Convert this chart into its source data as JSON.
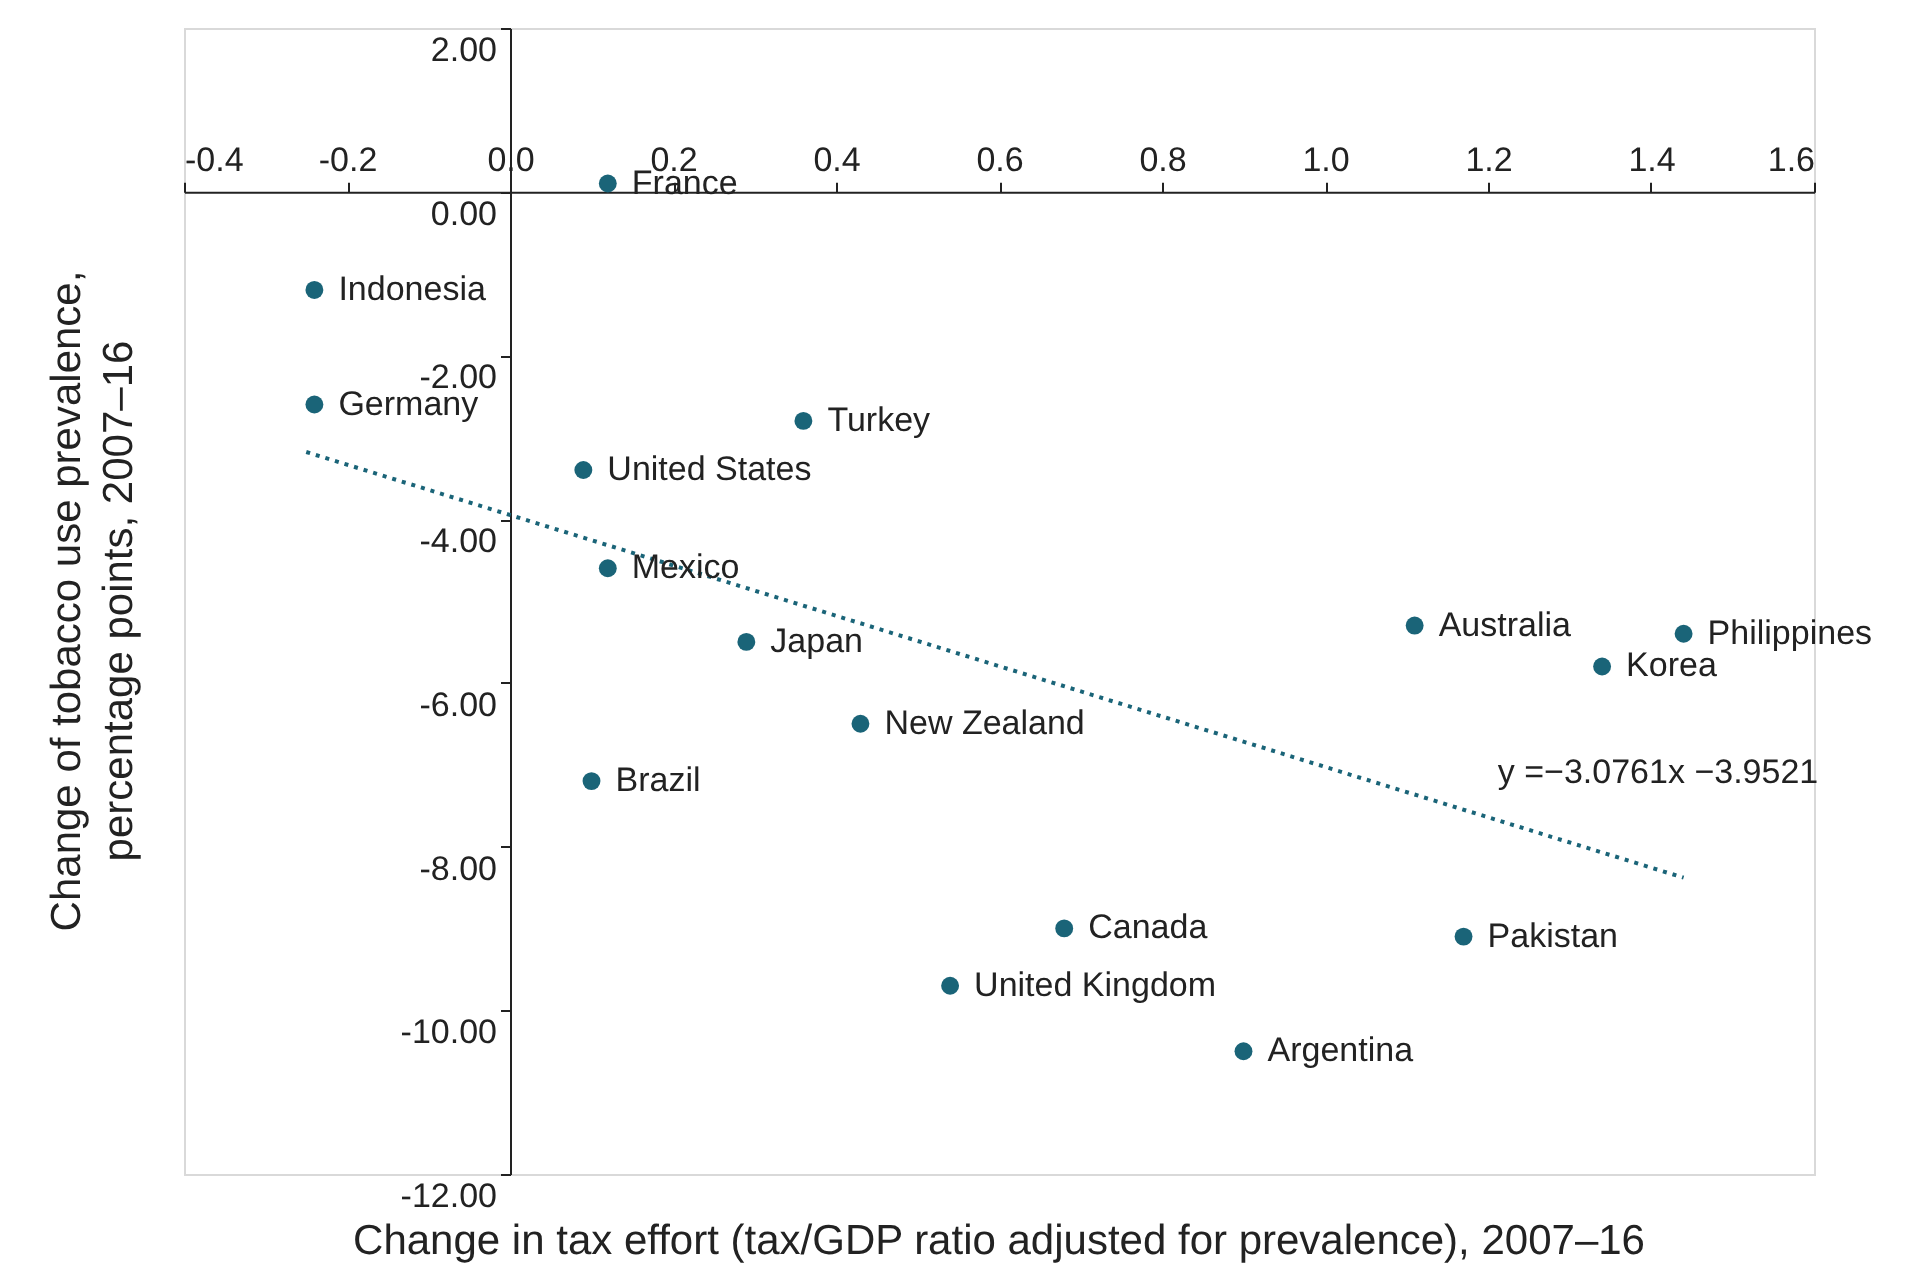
{
  "chart_data": {
    "type": "scatter",
    "xlabel": "Change in tax effort (tax/GDP ratio adjusted for prevalence), 2007–16",
    "ylabel": "Change of tobacco use prevalence,\npercentage points, 2007–16",
    "xlim": [
      -0.4,
      1.6
    ],
    "ylim": [
      -12,
      2
    ],
    "xticks": [
      {
        "value": -0.4,
        "label": "-0.4"
      },
      {
        "value": -0.2,
        "label": "-0.2"
      },
      {
        "value": 0,
        "label": "0.0"
      },
      {
        "value": 0.2,
        "label": "0.2"
      },
      {
        "value": 0.4,
        "label": "0.4"
      },
      {
        "value": 0.6,
        "label": "0.6"
      },
      {
        "value": 0.8,
        "label": "0.8"
      },
      {
        "value": 1.0,
        "label": "1.0"
      },
      {
        "value": 1.2,
        "label": "1.2"
      },
      {
        "value": 1.4,
        "label": "1.4"
      },
      {
        "value": 1.6,
        "label": "1.6"
      }
    ],
    "yticks": [
      {
        "value": 2,
        "label": "2.00"
      },
      {
        "value": 0,
        "label": "0.00"
      },
      {
        "value": -2,
        "label": "-2.00"
      },
      {
        "value": -4,
        "label": "-4.00"
      },
      {
        "value": -6,
        "label": "-6.00"
      },
      {
        "value": -8,
        "label": "-8.00"
      },
      {
        "value": -10,
        "label": "-10.00"
      },
      {
        "value": -12,
        "label": "-12.00"
      }
    ],
    "grid": false,
    "series": [
      {
        "type": "scatter",
        "marker": "circle",
        "color": "#1a6478",
        "x": [
          0.12,
          -0.24,
          -0.24,
          0.36,
          0.09,
          0.12,
          0.29,
          0.43,
          0.1,
          1.11,
          1.44,
          1.34,
          0.68,
          1.17,
          0.54,
          0.9
        ],
        "values": [
          0.1,
          -1.2,
          -2.6,
          -2.8,
          -3.4,
          -4.6,
          -5.5,
          -6.5,
          -7.2,
          -5.3,
          -5.4,
          -5.8,
          -9.0,
          -9.1,
          -9.7,
          -10.5
        ]
      },
      {
        "type": "line",
        "color": "#1a6478",
        "line_style": "dotted",
        "x": [
          -0.25,
          1.44
        ],
        "values": [
          -3.18,
          -8.38
        ]
      }
    ],
    "annotations": [
      {
        "text": "France",
        "x": 0.12,
        "y": 0.1
      },
      {
        "text": "Indonesia",
        "x": -0.24,
        "y": -1.2
      },
      {
        "text": "Germany",
        "x": -0.24,
        "y": -2.6
      },
      {
        "text": "Turkey",
        "x": 0.36,
        "y": -2.8
      },
      {
        "text": "United States",
        "x": 0.09,
        "y": -3.4
      },
      {
        "text": "Mexico",
        "x": 0.12,
        "y": -4.6
      },
      {
        "text": "Japan",
        "x": 0.29,
        "y": -5.5
      },
      {
        "text": "New Zealand",
        "x": 0.43,
        "y": -6.5
      },
      {
        "text": "Brazil",
        "x": 0.1,
        "y": -7.2
      },
      {
        "text": "Australia",
        "x": 1.11,
        "y": -5.3
      },
      {
        "text": "Philippines",
        "x": 1.44,
        "y": -5.4
      },
      {
        "text": "Korea",
        "x": 1.34,
        "y": -5.8
      },
      {
        "text": "Canada",
        "x": 0.68,
        "y": -9.0
      },
      {
        "text": "Pakistan",
        "x": 1.17,
        "y": -9.1
      },
      {
        "text": "United Kingdom",
        "x": 0.54,
        "y": -9.7
      },
      {
        "text": "Argentina",
        "x": 0.9,
        "y": -10.5
      },
      "y =−3.0761x −3.9521"
    ]
  }
}
